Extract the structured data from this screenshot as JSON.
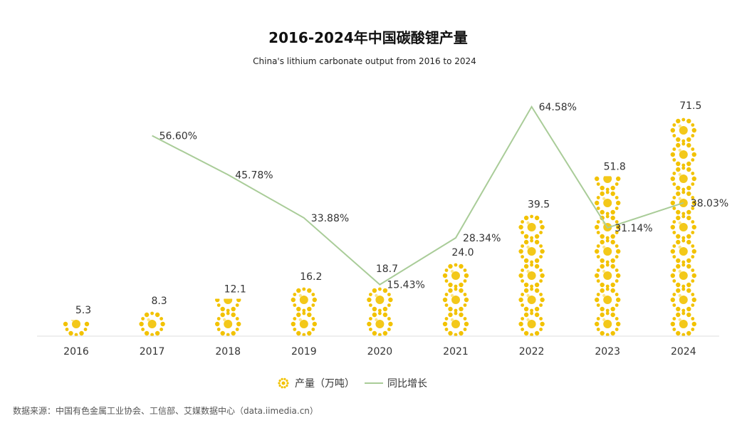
{
  "chart_data": {
    "type": "bar",
    "title": "2016-2024年中国碳酸锂产量",
    "subtitle": "China's lithium carbonate output from 2016 to 2024",
    "categories": [
      "2016",
      "2017",
      "2018",
      "2019",
      "2020",
      "2021",
      "2022",
      "2023",
      "2024"
    ],
    "series": [
      {
        "name": "产量（万吨）",
        "kind": "bar",
        "values": [
          5.3,
          8.3,
          12.1,
          16.2,
          18.7,
          24.0,
          39.5,
          51.8,
          71.5
        ],
        "labels": [
          "5.3",
          "8.3",
          "12.1",
          "16.2",
          "18.7",
          "24.0",
          "39.5",
          "51.8",
          "71.5"
        ],
        "color": "#F2C200"
      },
      {
        "name": "同比增长",
        "kind": "line",
        "values": [
          null,
          56.6,
          45.78,
          33.88,
          15.43,
          28.34,
          64.58,
          31.14,
          38.03
        ],
        "labels": [
          "",
          "56.60%",
          "45.78%",
          "33.88%",
          "15.43%",
          "28.34%",
          "64.58%",
          "31.14%",
          "38.03%"
        ],
        "color": "#A9CC98"
      }
    ],
    "ylim": [
      0,
      75
    ],
    "y2lim": [
      0,
      75
    ],
    "grid": false,
    "legend": "bottom-center",
    "source": "数据来源：中国有色金属工业协会、工信部、艾媒数据中心（data.iimedia.cn）"
  }
}
